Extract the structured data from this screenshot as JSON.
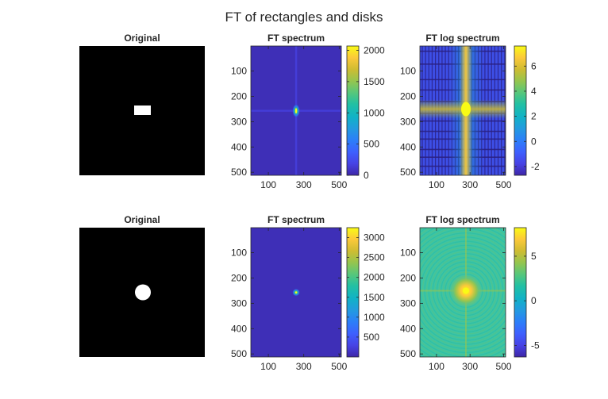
{
  "title": "FT of rectangles and disks",
  "colors": {
    "parula": [
      "#3e26a8",
      "#4743e5",
      "#3e60fe",
      "#2c7ef9",
      "#239ae0",
      "#11b2c7",
      "#22c0a3",
      "#57c77b",
      "#96c54e",
      "#cfbc32",
      "#fcc93a",
      "#f9fb15"
    ],
    "spectrum_background": "#3e2fb7",
    "log_background_row1": "#3d4ee5",
    "log_background_row2": "#3fc3a5",
    "image_black": "#000000",
    "image_white": "#ffffff"
  },
  "chart_data": [
    {
      "type": "heatmap",
      "title": "Original",
      "content": "black image, white rectangle at center",
      "shape": "rectangle",
      "axes_visible": false
    },
    {
      "type": "heatmap",
      "title": "FT spectrum",
      "colormap": "parula",
      "xlim": [
        1,
        512
      ],
      "ylim": [
        1,
        512
      ],
      "xticks": [
        "100",
        "300",
        "500"
      ],
      "yticks": [
        "100",
        "200",
        "300",
        "400",
        "500"
      ],
      "peak_location": [
        257,
        257
      ],
      "colorbar": {
        "range": [
          0,
          2070
        ],
        "ticks": [
          "0",
          "500",
          "1000",
          "1500",
          "2000"
        ],
        "tick_values": [
          0,
          500,
          1000,
          1500,
          2000
        ]
      }
    },
    {
      "type": "heatmap",
      "title": "FT log spectrum",
      "colormap": "parula",
      "xlim": [
        1,
        512
      ],
      "ylim": [
        1,
        512
      ],
      "xticks": [
        "100",
        "300",
        "500"
      ],
      "yticks": [
        "100",
        "200",
        "300",
        "400",
        "500"
      ],
      "pattern": "grid of sinc lobes, bright cross through center",
      "colorbar": {
        "range": [
          -2.7,
          7.6
        ],
        "ticks": [
          "-2",
          "0",
          "2",
          "4",
          "6"
        ],
        "tick_values": [
          -2,
          0,
          2,
          4,
          6
        ]
      }
    },
    {
      "type": "heatmap",
      "title": "Original",
      "content": "black image, white disk at center",
      "shape": "disk",
      "axes_visible": false
    },
    {
      "type": "heatmap",
      "title": "FT spectrum",
      "colormap": "parula",
      "xlim": [
        1,
        512
      ],
      "ylim": [
        1,
        512
      ],
      "xticks": [
        "100",
        "300",
        "500"
      ],
      "yticks": [
        "100",
        "200",
        "300",
        "400",
        "500"
      ],
      "peak_location": [
        257,
        257
      ],
      "colorbar": {
        "range": [
          0,
          3250
        ],
        "ticks": [
          "500",
          "1000",
          "1500",
          "2000",
          "2500",
          "3000"
        ],
        "tick_values": [
          500,
          1000,
          1500,
          2000,
          2500,
          3000
        ]
      }
    },
    {
      "type": "heatmap",
      "title": "FT log spectrum",
      "colormap": "parula",
      "xlim": [
        1,
        512
      ],
      "ylim": [
        1,
        512
      ],
      "xticks": [
        "100",
        "300",
        "500"
      ],
      "yticks": [
        "100",
        "200",
        "300",
        "400",
        "500"
      ],
      "pattern": "concentric rings (Airy pattern) around center",
      "colorbar": {
        "range": [
          -6.3,
          8.2
        ],
        "ticks": [
          "-5",
          "0",
          "5"
        ],
        "tick_values": [
          -5,
          0,
          5
        ]
      }
    }
  ]
}
